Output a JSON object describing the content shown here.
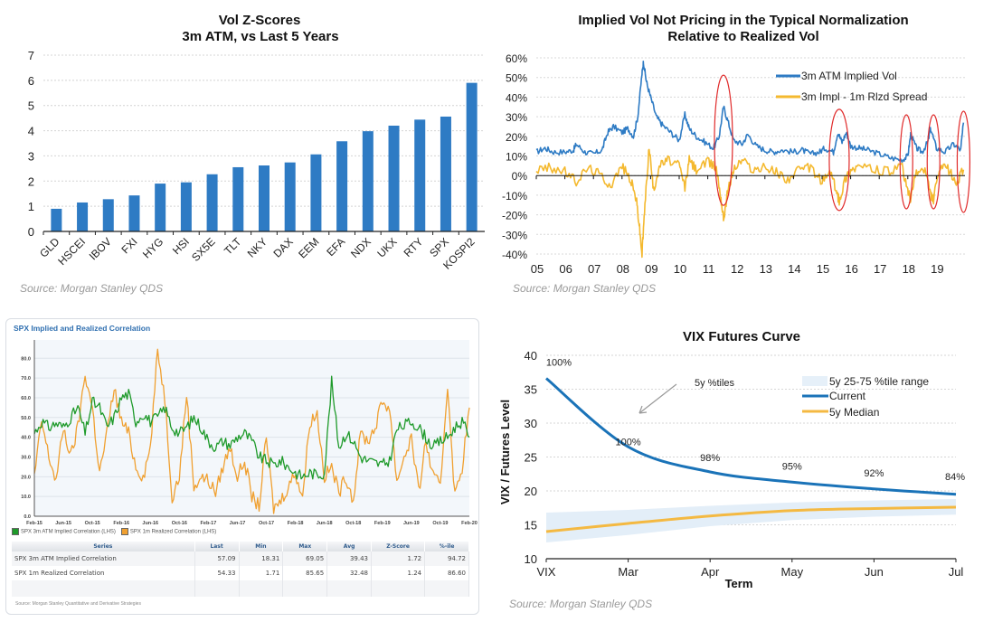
{
  "chart_data": [
    {
      "type": "bar",
      "title": "Vol Z-Scores",
      "subtitle": "3m ATM, vs Last 5 Years",
      "xlabel": "",
      "ylabel": "",
      "ylim": [
        0,
        7
      ],
      "yticks": [
        0,
        1,
        2,
        3,
        4,
        5,
        6,
        7
      ],
      "grid": true,
      "color": "#2e7bc4",
      "categories": [
        "GLD",
        "HSCEI",
        "IBOV",
        "FXI",
        "HYG",
        "HSI",
        "SX5E",
        "TLT",
        "NKY",
        "DAX",
        "EEM",
        "EFA",
        "NDX",
        "UKX",
        "RTY",
        "SPX",
        "KOSPI2"
      ],
      "values": [
        0.9,
        1.15,
        1.28,
        1.43,
        1.9,
        1.95,
        2.27,
        2.55,
        2.62,
        2.74,
        3.06,
        3.58,
        3.98,
        4.2,
        4.44,
        4.56,
        5.9
      ],
      "source": "Source: Morgan Stanley QDS"
    },
    {
      "type": "line",
      "title": "Implied Vol Not Pricing in the Typical  Normalization",
      "subtitle": "Relative to Realized Vol",
      "xlabel": "",
      "ylabel": "",
      "ylim": [
        -40,
        60
      ],
      "yticks": [
        "-40%",
        "-30%",
        "-20%",
        "-10%",
        "0%",
        "10%",
        "20%",
        "30%",
        "40%",
        "50%",
        "60%"
      ],
      "xticks": [
        "05",
        "06",
        "07",
        "08",
        "09",
        "10",
        "11",
        "12",
        "13",
        "14",
        "15",
        "16",
        "17",
        "18",
        "19"
      ],
      "xlim": [
        2005,
        2020
      ],
      "grid": true,
      "legend_position": "top-right",
      "series": [
        {
          "name": "3m ATM  Implied Vol",
          "color": "#2e7bc4",
          "x": [
            2005.0,
            2005.3,
            2005.6,
            2006.0,
            2006.3,
            2006.4,
            2006.7,
            2007.0,
            2007.3,
            2007.5,
            2007.7,
            2008.0,
            2008.2,
            2008.4,
            2008.55,
            2008.7,
            2008.75,
            2008.85,
            2009.0,
            2009.2,
            2009.4,
            2009.7,
            2010.0,
            2010.2,
            2010.35,
            2010.6,
            2010.9,
            2011.2,
            2011.4,
            2011.55,
            2011.7,
            2011.9,
            2012.2,
            2012.4,
            2012.7,
            2013.0,
            2013.3,
            2013.6,
            2014.0,
            2014.3,
            2014.6,
            2014.9,
            2015.1,
            2015.4,
            2015.55,
            2015.7,
            2015.85,
            2016.0,
            2016.3,
            2016.6,
            2017.0,
            2017.4,
            2017.8,
            2018.0,
            2018.1,
            2018.3,
            2018.5,
            2018.7,
            2018.8,
            2019.0,
            2019.3,
            2019.6,
            2019.85,
            2019.95
          ],
          "values": [
            12,
            14,
            12,
            12,
            13,
            16,
            12,
            11,
            13,
            22,
            25,
            22,
            24,
            20,
            30,
            52,
            58,
            48,
            40,
            30,
            26,
            22,
            18,
            31,
            24,
            20,
            17,
            14,
            20,
            35,
            28,
            18,
            16,
            21,
            15,
            13,
            12,
            13,
            12,
            13,
            11,
            12,
            14,
            12,
            22,
            17,
            22,
            15,
            14,
            13,
            11,
            9,
            8,
            10,
            21,
            14,
            12,
            17,
            24,
            14,
            12,
            16,
            13,
            27
          ]
        },
        {
          "name": "3m Impl - 1m Rlzd Spread",
          "color": "#f4b92f",
          "x": [
            2005.0,
            2005.5,
            2006.0,
            2006.4,
            2006.8,
            2007.2,
            2007.6,
            2008.0,
            2008.3,
            2008.5,
            2008.6,
            2008.7,
            2008.8,
            2008.95,
            2009.1,
            2009.3,
            2009.6,
            2010.0,
            2010.2,
            2010.35,
            2010.6,
            2011.0,
            2011.3,
            2011.45,
            2011.55,
            2011.7,
            2011.9,
            2012.2,
            2012.6,
            2013.0,
            2013.4,
            2013.8,
            2014.2,
            2014.6,
            2015.0,
            2015.3,
            2015.5,
            2015.6,
            2015.8,
            2016.0,
            2016.3,
            2016.8,
            2017.3,
            2017.8,
            2018.0,
            2018.1,
            2018.3,
            2018.6,
            2018.8,
            2018.9,
            2019.1,
            2019.4,
            2019.7,
            2019.95
          ],
          "values": [
            3,
            4,
            2,
            -3,
            4,
            1,
            -5,
            5,
            -2,
            -12,
            -25,
            -40,
            -15,
            15,
            -8,
            5,
            8,
            5,
            -6,
            8,
            3,
            7,
            4,
            -10,
            -22,
            -8,
            3,
            8,
            3,
            4,
            2,
            -2,
            3,
            4,
            -3,
            2,
            -8,
            -13,
            -2,
            3,
            5,
            3,
            2,
            4,
            -8,
            -12,
            2,
            3,
            -10,
            -12,
            3,
            4,
            -4,
            3
          ]
        }
      ],
      "annotations": [
        "red ellipse 2011",
        "red ellipse 2015-16",
        "red ellipse 2018 Q1",
        "red ellipse 2018 Q4",
        "red ellipse 2020"
      ],
      "source": "Source: Morgan Stanley QDS"
    },
    {
      "type": "line",
      "title": "SPX Implied and Realized Correlation",
      "xlabel": "",
      "ylabel": "",
      "ylim": [
        0,
        87
      ],
      "yticks": [
        "0.0",
        "10.0",
        "20.0",
        "30.0",
        "40.0",
        "50.0",
        "60.0",
        "70.0",
        "80.0"
      ],
      "xticks": [
        "Feb-15",
        "Jun-15",
        "Oct-15",
        "Feb-16",
        "Jun-16",
        "Oct-16",
        "Feb-17",
        "Jun-17",
        "Oct-17",
        "Feb-18",
        "Jun-18",
        "Oct-18",
        "Feb-19",
        "Jun-19",
        "Oct-19",
        "Feb-20"
      ],
      "xlim": [
        0,
        60
      ],
      "grid": true,
      "legend_position": "bottom",
      "series": [
        {
          "name": "SPX 3m ATM Implied Correlation (LHS)",
          "color": "#1e9a2a",
          "x": [
            0,
            1,
            2,
            3,
            4,
            5,
            6,
            7,
            8,
            9,
            10,
            11,
            12,
            13,
            14,
            15,
            16,
            17,
            18,
            19,
            20,
            21,
            22,
            23,
            24,
            25,
            26,
            27,
            28,
            29,
            30,
            31,
            32,
            33,
            34,
            35,
            36,
            37,
            38,
            39,
            40,
            41,
            42,
            43,
            44,
            45,
            46,
            47,
            48,
            49,
            50,
            51,
            52,
            53,
            54,
            55,
            56,
            57,
            58,
            59,
            60
          ],
          "values": [
            42,
            48,
            45,
            47,
            45,
            50,
            55,
            42,
            58,
            55,
            45,
            50,
            60,
            62,
            48,
            52,
            48,
            50,
            55,
            45,
            42,
            45,
            50,
            45,
            38,
            35,
            38,
            36,
            40,
            42,
            38,
            30,
            28,
            26,
            28,
            25,
            22,
            20,
            22,
            21,
            22,
            68,
            35,
            42,
            38,
            30,
            28,
            27,
            26,
            28,
            44,
            46,
            48,
            45,
            40,
            35,
            38,
            40,
            45,
            48,
            40
          ]
        },
        {
          "name": "SPX 1m Realized Correlation (LHS)",
          "color": "#f0a030",
          "x": [
            0,
            1,
            2,
            3,
            4,
            5,
            6,
            7,
            8,
            9,
            10,
            11,
            12,
            13,
            14,
            15,
            16,
            17,
            18,
            19,
            20,
            21,
            22,
            23,
            24,
            25,
            26,
            27,
            28,
            29,
            30,
            31,
            32,
            33,
            34,
            35,
            36,
            37,
            38,
            39,
            40,
            41,
            42,
            43,
            44,
            45,
            46,
            47,
            48,
            49,
            50,
            51,
            52,
            53,
            54,
            55,
            56,
            57,
            58,
            59,
            60
          ],
          "values": [
            20,
            48,
            30,
            18,
            45,
            30,
            45,
            72,
            55,
            22,
            42,
            65,
            48,
            42,
            25,
            20,
            35,
            84,
            60,
            10,
            20,
            62,
            15,
            20,
            18,
            12,
            25,
            35,
            20,
            28,
            10,
            5,
            40,
            4,
            8,
            15,
            22,
            10,
            48,
            52,
            20,
            25,
            12,
            20,
            8,
            42,
            38,
            45,
            58,
            55,
            18,
            30,
            40,
            12,
            38,
            20,
            15,
            67,
            10,
            25,
            55
          ]
        }
      ],
      "table": {
        "columns": [
          "Series",
          "Last",
          "Min",
          "Max",
          "Avg",
          "Z-Score",
          "%-ile"
        ],
        "rows": [
          [
            "SPX 3m ATM Implied Correlation",
            "57.09",
            "18.31",
            "69.05",
            "39.43",
            "1.72",
            "94.72"
          ],
          [
            "SPX 1m Realized Correlation",
            "54.33",
            "1.71",
            "85.65",
            "32.48",
            "1.24",
            "86.60"
          ]
        ]
      },
      "source": "Source: Morgan Stanley Quantitative and Derivative Strategies"
    },
    {
      "type": "line",
      "title": "VIX Futures Curve",
      "xlabel": "Term",
      "ylabel": "VIX / Futures Level",
      "ylim": [
        10,
        40
      ],
      "yticks": [
        10,
        15,
        20,
        25,
        30,
        35,
        40
      ],
      "categories": [
        "VIX",
        "Mar",
        "Apr",
        "May",
        "Jun",
        "Jul"
      ],
      "grid": true,
      "legend_position": "top-right",
      "series": [
        {
          "name": "Current",
          "color": "#1a73b8",
          "values": [
            36.6,
            26.5,
            22.8,
            21.3,
            20.3,
            19.5
          ]
        },
        {
          "name": "5y Median",
          "color": "#f4b942",
          "values": [
            14.0,
            15.2,
            16.3,
            17.1,
            17.4,
            17.6
          ]
        }
      ],
      "band": {
        "name": "5y 25-75 %tile range",
        "color": "#dbe9f6",
        "low": [
          12.4,
          13.5,
          14.8,
          15.7,
          16.2,
          16.5
        ],
        "high": [
          16.8,
          17.2,
          17.8,
          18.3,
          18.6,
          18.8
        ]
      },
      "data_labels": [
        "100%",
        "100%",
        "98%",
        "95%",
        "92%",
        "84%"
      ],
      "annotation": "5y %tiles",
      "source": "Source: Morgan Stanley QDS"
    }
  ]
}
